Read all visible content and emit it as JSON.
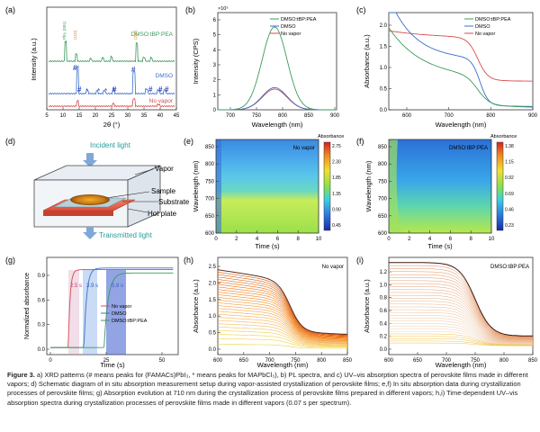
{
  "panels": {
    "a": {
      "letter": "(a)",
      "xlabel": "2θ (°)",
      "ylabel": "Intensity (a.u.)",
      "xticks": [
        "5",
        "10",
        "15",
        "20",
        "25",
        "30",
        "35",
        "40",
        "45"
      ],
      "xlim": [
        5,
        45
      ],
      "series": [
        {
          "name": "DMSO:tBP:PEA",
          "color": "#3a9a5c"
        },
        {
          "name": "DMSO",
          "color": "#3b6fc9"
        },
        {
          "name": "No vapor",
          "color": "#d84a4a"
        }
      ],
      "peak_labels": [
        "PbI₂ (001)",
        "(110)",
        "(220)"
      ],
      "markers": {
        "hash": "#",
        "star": "*"
      }
    },
    "b": {
      "letter": "(b)",
      "xlabel": "Wavelength (nm)",
      "ylabel": "Intensity (CPS)",
      "exponent": "×10⁵",
      "yticks": [
        "0",
        "1",
        "2",
        "3",
        "4",
        "5",
        "6"
      ],
      "xticks": [
        "700",
        "750",
        "800",
        "850",
        "900"
      ],
      "legend": [
        "DMSO:tBP:PEA",
        "DMSO",
        "No vapor"
      ],
      "chart_data": {
        "type": "line",
        "x_peak": 780,
        "series": [
          {
            "name": "DMSO:tBP:PEA",
            "peak": 5.8
          },
          {
            "name": "DMSO",
            "peak": 1.55
          },
          {
            "name": "No vapor",
            "peak": 1.45
          }
        ],
        "xlim": [
          670,
          900
        ],
        "ylim": [
          0,
          6.3
        ]
      }
    },
    "c": {
      "letter": "(c)",
      "xlabel": "Wavelength (nm)",
      "ylabel": "Absorbance (a.u.)",
      "yticks": [
        "0.0",
        "0.5",
        "1.0",
        "1.5",
        "2.0"
      ],
      "xticks": [
        "600",
        "700",
        "800",
        "900"
      ],
      "legend": [
        "DMSO:tBP:PEA",
        "DMSO",
        "No vapor"
      ]
    },
    "d": {
      "letter": "(d)",
      "incident": "Incident light",
      "transmitted": "Transmitted light",
      "labels": [
        "Vapor",
        "Sample",
        "Substrate",
        "Hot plate"
      ]
    },
    "e": {
      "letter": "(e)",
      "tag": "No vapor",
      "xlabel": "Time (s)",
      "ylabel": "Wavelength (nm)",
      "yticks": [
        "600",
        "650",
        "700",
        "750",
        "800",
        "850"
      ],
      "xticks": [
        "0",
        "2",
        "4",
        "6",
        "8",
        "10"
      ],
      "cbar_title": "Absorbance",
      "cbar_ticks": [
        "2.75",
        "2.30",
        "1.85",
        "1.35",
        "0.90",
        "0.45"
      ]
    },
    "f": {
      "letter": "(f)",
      "tag": "DMSO:tBP:PEA",
      "xlabel": "Time (s)",
      "ylabel": "Wavelength (nm)",
      "yticks": [
        "600",
        "650",
        "700",
        "750",
        "800",
        "850"
      ],
      "xticks": [
        "0",
        "2",
        "4",
        "6",
        "8",
        "10"
      ],
      "cbar_title": "Absorbance",
      "cbar_ticks": [
        "1.38",
        "1.15",
        "0.92",
        "0.69",
        "0.46",
        "0.23"
      ]
    },
    "g": {
      "letter": "(g)",
      "xlabel": "Time (s)",
      "ylabel": "Normalized absorbance",
      "yticks": [
        "0.0",
        "0.3",
        "0.6",
        "0.9"
      ],
      "xticks": [
        "0",
        "25",
        "50"
      ],
      "legend": [
        "No vapor",
        "DMSO",
        "DMSO:tBP:PEA"
      ],
      "annotations": [
        "2.5 s",
        "3.9 s",
        "5.8 s"
      ]
    },
    "h": {
      "letter": "(h)",
      "tag": "No vapor",
      "xlabel": "Wavelength (nm)",
      "ylabel": "Absorbance (a.u.)",
      "yticks": [
        "0.0",
        "0.5",
        "1.0",
        "1.5",
        "2.0",
        "2.5"
      ],
      "xticks": [
        "600",
        "650",
        "700",
        "750",
        "800",
        "850"
      ]
    },
    "i": {
      "letter": "(i)",
      "tag": "DMSO:tBP:PEA",
      "xlabel": "Wavelength (nm)",
      "ylabel": "Absorbance (a.u.)",
      "yticks": [
        "0.0",
        "0.2",
        "0.4",
        "0.6",
        "0.8",
        "1.0",
        "1.2"
      ],
      "xticks": [
        "600",
        "650",
        "700",
        "750",
        "800",
        "850"
      ]
    }
  },
  "caption": {
    "bold": "Figure 3.",
    "text": " a) XRD patterns (# means peaks for (FAMACs)PbI₃, * means peaks for MAPbCl₃), b) PL spectra, and c) UV–vis absorption spectra of perovskite films made in different vapors; d) Schematic diagram of in situ absorption measurement setup during vapor-assisted crystallization of perovskite films; e,f) In situ absorption data during crystallization processes of perovskite films; g) Absorption evolution at 710 nm during the crystallization process of perovskite films prepared in different vapors; h,i) Time-dependent UV–vis absorption spectra during crystallization processes of perovskite films made in different vapors (0.07 s per spectrum)."
  }
}
